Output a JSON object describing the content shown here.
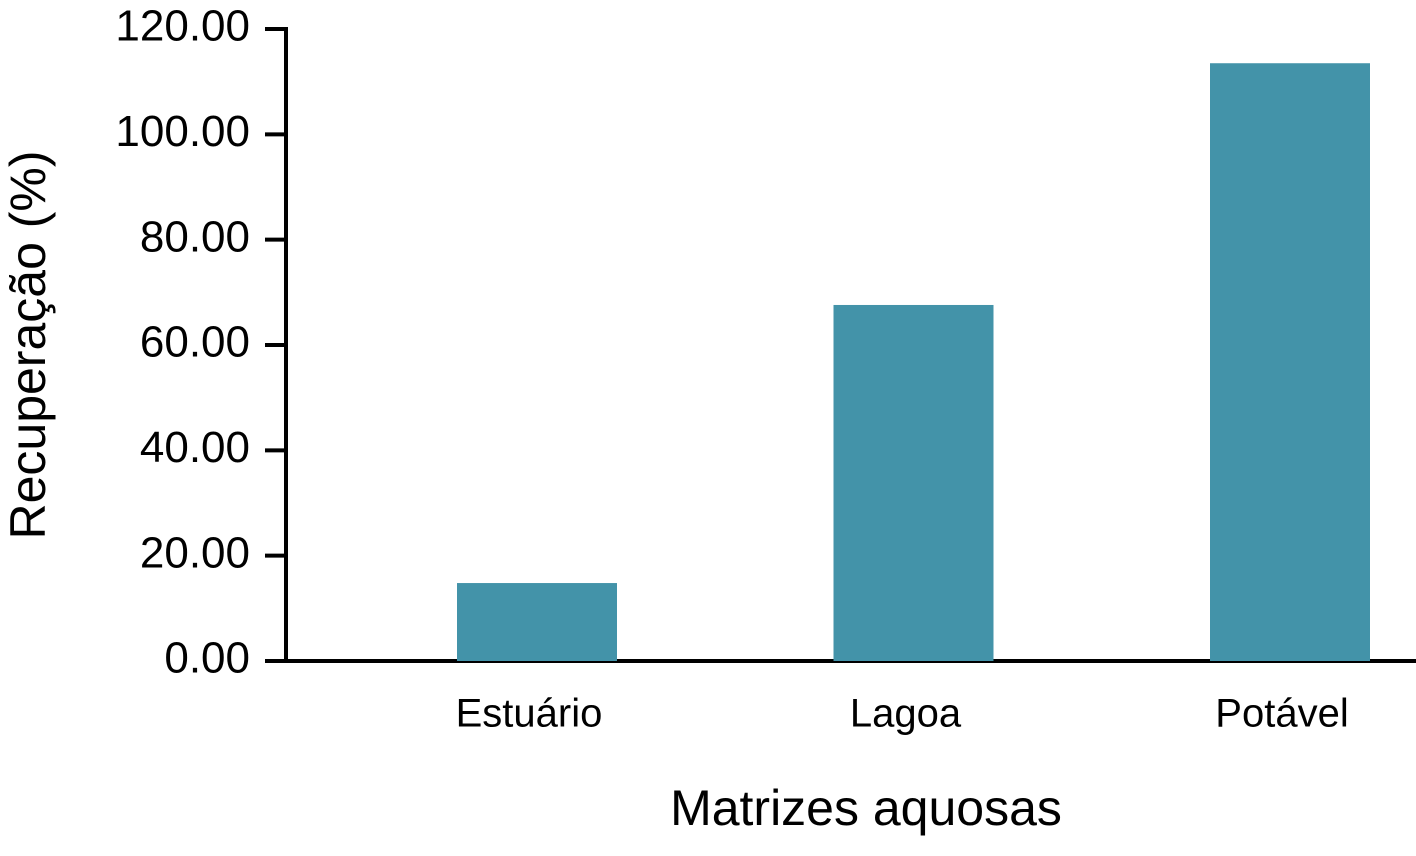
{
  "chart_data": {
    "type": "bar",
    "x_label": "Matrizes aquosas",
    "y_label": "Recuperação (%)",
    "categories": [
      "Estuário",
      "Lagoa",
      "Potável"
    ],
    "values": [
      14.8,
      67.6,
      113.5
    ],
    "color": "#4393a9",
    "ylim": [
      0,
      120
    ],
    "yticks": [
      {
        "value": 0,
        "label": "0.00"
      },
      {
        "value": 20,
        "label": "20.00"
      },
      {
        "value": 40,
        "label": "40.00"
      },
      {
        "value": 60,
        "label": "60.00"
      },
      {
        "value": 80,
        "label": "80.00"
      },
      {
        "value": 100,
        "label": "100.00"
      },
      {
        "value": 120,
        "label": "120.00"
      }
    ],
    "grid": false
  }
}
